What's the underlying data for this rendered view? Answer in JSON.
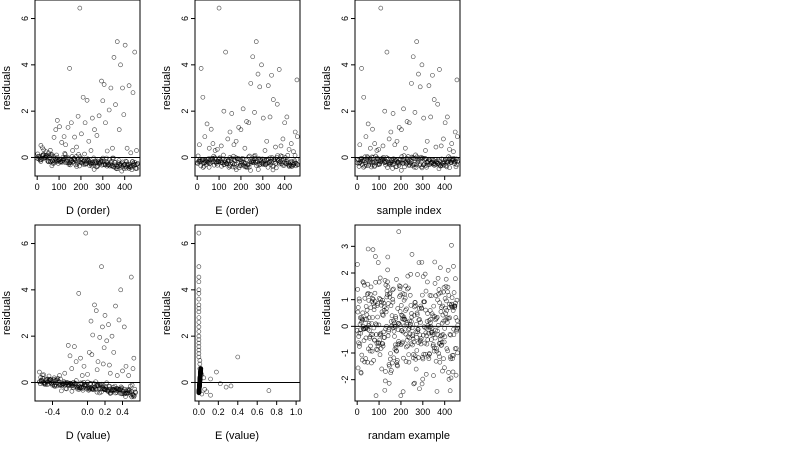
{
  "chart_data": [
    {
      "type": "scatter",
      "xlabel": "D (order)",
      "ylabel": "residuals",
      "xlim": [
        -10,
        470
      ],
      "ylim": [
        -0.8,
        6.8
      ],
      "x_ticks": [
        0,
        100,
        200,
        300,
        400
      ],
      "y_ticks": [
        0,
        2,
        4,
        6
      ],
      "reference_line_y": 0,
      "grid": false,
      "seed": 11,
      "points": [
        [
          17,
          0.52
        ],
        [
          24,
          0.42
        ],
        [
          30,
          0.33
        ],
        [
          40,
          0.25
        ],
        [
          52,
          0.2
        ],
        [
          60,
          0.31
        ],
        [
          68,
          0.12
        ],
        [
          77,
          0.87
        ],
        [
          85,
          1.2
        ],
        [
          92,
          1.6
        ],
        [
          102,
          1.33
        ],
        [
          112,
          0.65
        ],
        [
          123,
          0.9
        ],
        [
          130,
          0.55
        ],
        [
          141,
          1.3
        ],
        [
          148,
          3.85
        ],
        [
          156,
          1.5
        ],
        [
          162,
          0.3
        ],
        [
          171,
          0.88
        ],
        [
          180,
          0.45
        ],
        [
          187,
          1.78
        ],
        [
          195,
          6.45
        ],
        [
          202,
          1.02
        ],
        [
          210,
          2.6
        ],
        [
          219,
          1.5
        ],
        [
          228,
          2.47
        ],
        [
          236,
          0.7
        ],
        [
          246,
          0.3
        ],
        [
          252,
          1.7
        ],
        [
          262,
          1.2
        ],
        [
          273,
          0.95
        ],
        [
          283,
          1.8
        ],
        [
          294,
          3.3
        ],
        [
          300,
          2.45
        ],
        [
          306,
          3.15
        ],
        [
          312,
          1.5
        ],
        [
          320,
          0.28
        ],
        [
          329,
          2.05
        ],
        [
          337,
          3.0
        ],
        [
          344,
          0.4
        ],
        [
          351,
          4.32
        ],
        [
          358,
          2.28
        ],
        [
          366,
          5.0
        ],
        [
          375,
          1.2
        ],
        [
          381,
          4.0
        ],
        [
          390,
          3.0
        ],
        [
          396,
          1.85
        ],
        [
          402,
          4.85
        ],
        [
          411,
          0.4
        ],
        [
          420,
          3.1
        ],
        [
          428,
          0.2
        ],
        [
          438,
          2.8
        ],
        [
          446,
          4.55
        ],
        [
          454,
          0.3
        ]
      ],
      "dense_band": {
        "count": 220,
        "start": [
          0,
          0.0
        ],
        "end": [
          460,
          -0.38
        ],
        "spread": 0.12
      }
    },
    {
      "type": "scatter",
      "xlabel": "E (order)",
      "ylabel": "residuals",
      "xlim": [
        -10,
        470
      ],
      "ylim": [
        -0.8,
        6.8
      ],
      "x_ticks": [
        0,
        100,
        200,
        300,
        400
      ],
      "y_ticks": [
        0,
        2,
        4,
        6
      ],
      "reference_line_y": 0,
      "grid": false,
      "seed": 22,
      "points": [
        [
          10,
          0.55
        ],
        [
          18,
          3.85
        ],
        [
          26,
          2.6
        ],
        [
          35,
          0.9
        ],
        [
          45,
          1.45
        ],
        [
          55,
          0.4
        ],
        [
          64,
          1.22
        ],
        [
          72,
          0.6
        ],
        [
          82,
          0.3
        ],
        [
          92,
          0.35
        ],
        [
          100,
          6.45
        ],
        [
          110,
          0.5
        ],
        [
          122,
          2.0
        ],
        [
          130,
          4.55
        ],
        [
          140,
          0.8
        ],
        [
          150,
          1.1
        ],
        [
          158,
          1.9
        ],
        [
          168,
          0.55
        ],
        [
          178,
          0.7
        ],
        [
          190,
          1.3
        ],
        [
          200,
          1.2
        ],
        [
          210,
          2.1
        ],
        [
          218,
          0.4
        ],
        [
          226,
          1.55
        ],
        [
          236,
          1.5
        ],
        [
          245,
          3.2
        ],
        [
          254,
          4.35
        ],
        [
          262,
          1.95
        ],
        [
          270,
          5.0
        ],
        [
          278,
          3.6
        ],
        [
          286,
          3.05
        ],
        [
          294,
          4.0
        ],
        [
          302,
          1.7
        ],
        [
          310,
          0.3
        ],
        [
          318,
          0.7
        ],
        [
          325,
          3.1
        ],
        [
          333,
          1.75
        ],
        [
          340,
          3.55
        ],
        [
          348,
          2.5
        ],
        [
          358,
          0.45
        ],
        [
          366,
          2.3
        ],
        [
          375,
          3.8
        ],
        [
          383,
          0.5
        ],
        [
          392,
          0.8
        ],
        [
          400,
          1.5
        ],
        [
          410,
          1.75
        ],
        [
          420,
          0.35
        ],
        [
          430,
          0.6
        ],
        [
          440,
          0.25
        ],
        [
          448,
          1.1
        ],
        [
          456,
          3.35
        ],
        [
          458,
          0.9
        ]
      ],
      "dense_band": {
        "count": 220,
        "start": [
          0,
          -0.2
        ],
        "end": [
          460,
          -0.2
        ],
        "spread": 0.12
      }
    },
    {
      "type": "scatter",
      "xlabel": "sample index",
      "ylabel": "residuals",
      "xlim": [
        -10,
        470
      ],
      "ylim": [
        -0.8,
        6.8
      ],
      "x_ticks": [
        0,
        100,
        200,
        300,
        400
      ],
      "y_ticks": [
        0,
        2,
        4,
        6
      ],
      "reference_line_y": 0,
      "grid": false,
      "seed": 33,
      "points": [
        [
          12,
          0.55
        ],
        [
          20,
          3.85
        ],
        [
          30,
          2.6
        ],
        [
          40,
          0.9
        ],
        [
          50,
          1.45
        ],
        [
          60,
          0.4
        ],
        [
          70,
          1.22
        ],
        [
          80,
          0.6
        ],
        [
          90,
          0.3
        ],
        [
          98,
          0.35
        ],
        [
          108,
          6.45
        ],
        [
          118,
          0.5
        ],
        [
          126,
          2.0
        ],
        [
          136,
          4.55
        ],
        [
          146,
          0.8
        ],
        [
          154,
          1.1
        ],
        [
          164,
          1.9
        ],
        [
          172,
          0.55
        ],
        [
          182,
          0.7
        ],
        [
          192,
          1.3
        ],
        [
          202,
          1.2
        ],
        [
          212,
          2.1
        ],
        [
          220,
          0.4
        ],
        [
          228,
          1.55
        ],
        [
          238,
          1.5
        ],
        [
          248,
          3.2
        ],
        [
          256,
          4.35
        ],
        [
          264,
          1.95
        ],
        [
          272,
          5.0
        ],
        [
          280,
          3.6
        ],
        [
          288,
          3.05
        ],
        [
          296,
          4.0
        ],
        [
          304,
          1.7
        ],
        [
          312,
          0.3
        ],
        [
          320,
          0.7
        ],
        [
          328,
          3.1
        ],
        [
          336,
          1.75
        ],
        [
          344,
          3.55
        ],
        [
          352,
          2.5
        ],
        [
          360,
          0.45
        ],
        [
          368,
          2.3
        ],
        [
          376,
          3.8
        ],
        [
          384,
          0.5
        ],
        [
          394,
          0.8
        ],
        [
          402,
          1.5
        ],
        [
          412,
          1.75
        ],
        [
          422,
          0.35
        ],
        [
          432,
          0.6
        ],
        [
          440,
          0.25
        ],
        [
          448,
          1.1
        ],
        [
          456,
          3.35
        ],
        [
          458,
          0.9
        ]
      ],
      "dense_band": {
        "count": 220,
        "start": [
          0,
          -0.2
        ],
        "end": [
          460,
          -0.2
        ],
        "spread": 0.12
      }
    },
    {
      "type": "scatter",
      "xlabel": "D (value)",
      "ylabel": "residuals",
      "xlim": [
        -0.6,
        0.6
      ],
      "ylim": [
        -0.8,
        6.8
      ],
      "x_ticks": [
        -0.4,
        0.0,
        0.2,
        0.4
      ],
      "x_tick_labels": [
        "-0.4",
        "0.0",
        "0.2",
        "0.4"
      ],
      "y_ticks": [
        0,
        2,
        4,
        6
      ],
      "reference_line_y": 0,
      "grid": false,
      "seed": 44,
      "points": [
        [
          -0.55,
          0.45
        ],
        [
          -0.5,
          0.33
        ],
        [
          -0.44,
          0.28
        ],
        [
          -0.38,
          0.2
        ],
        [
          -0.32,
          0.3
        ],
        [
          -0.26,
          0.4
        ],
        [
          -0.22,
          1.6
        ],
        [
          -0.2,
          1.15
        ],
        [
          -0.18,
          0.6
        ],
        [
          -0.15,
          1.55
        ],
        [
          -0.13,
          0.9
        ],
        [
          -0.1,
          3.85
        ],
        [
          -0.08,
          1.05
        ],
        [
          -0.06,
          0.3
        ],
        [
          -0.04,
          0.7
        ],
        [
          -0.02,
          6.45
        ],
        [
          0.0,
          0.35
        ],
        [
          0.02,
          1.3
        ],
        [
          0.04,
          2.65
        ],
        [
          0.06,
          2.05
        ],
        [
          0.08,
          3.35
        ],
        [
          0.1,
          3.1
        ],
        [
          0.12,
          0.9
        ],
        [
          0.14,
          1.95
        ],
        [
          0.16,
          5.0
        ],
        [
          0.17,
          2.4
        ],
        [
          0.18,
          0.8
        ],
        [
          0.2,
          2.9
        ],
        [
          0.22,
          1.8
        ],
        [
          0.24,
          2.5
        ],
        [
          0.26,
          0.4
        ],
        [
          0.28,
          2.0
        ],
        [
          0.3,
          1.3
        ],
        [
          0.32,
          3.3
        ],
        [
          0.34,
          0.3
        ],
        [
          0.36,
          2.7
        ],
        [
          0.38,
          4.0
        ],
        [
          0.4,
          0.5
        ],
        [
          0.42,
          2.4
        ],
        [
          0.44,
          0.7
        ],
        [
          0.47,
          0.3
        ],
        [
          0.5,
          4.55
        ],
        [
          0.52,
          0.6
        ],
        [
          0.53,
          1.05
        ],
        [
          0.05,
          1.2
        ],
        [
          0.11,
          0.55
        ],
        [
          0.19,
          1.5
        ],
        [
          0.25,
          0.75
        ]
      ],
      "dense_band": {
        "count": 220,
        "start": [
          -0.55,
          0.05
        ],
        "end": [
          0.55,
          -0.42
        ],
        "spread": 0.12
      }
    },
    {
      "type": "scatter",
      "xlabel": "E (value)",
      "ylabel": "residuals",
      "xlim": [
        -0.04,
        1.04
      ],
      "ylim": [
        -0.8,
        6.8
      ],
      "x_ticks": [
        0.0,
        0.2,
        0.4,
        0.6,
        0.8,
        1.0
      ],
      "x_tick_labels": [
        "0.0",
        "0.2",
        "0.4",
        "0.6",
        "0.8",
        "1.0"
      ],
      "y_ticks": [
        0,
        2,
        4,
        6
      ],
      "reference_line_y": 0,
      "grid": false,
      "seed": 55,
      "points": [
        [
          0.0,
          6.45
        ],
        [
          0.0,
          5.0
        ],
        [
          0.0,
          4.55
        ],
        [
          0.0,
          4.35
        ],
        [
          0.0,
          4.0
        ],
        [
          0.0,
          3.85
        ],
        [
          0.0,
          3.6
        ],
        [
          0.0,
          3.35
        ],
        [
          0.0,
          3.2
        ],
        [
          0.0,
          3.05
        ],
        [
          0.0,
          2.8
        ],
        [
          0.0,
          2.6
        ],
        [
          0.0,
          2.4
        ],
        [
          0.0,
          2.2
        ],
        [
          0.0,
          2.0
        ],
        [
          0.0,
          1.85
        ],
        [
          0.0,
          1.7
        ],
        [
          0.0,
          1.55
        ],
        [
          0.0,
          1.4
        ],
        [
          0.0,
          1.25
        ],
        [
          0.0,
          1.1
        ],
        [
          0.01,
          0.95
        ],
        [
          0.01,
          0.8
        ],
        [
          0.01,
          0.6
        ],
        [
          0.02,
          0.5
        ],
        [
          0.03,
          0.35
        ],
        [
          0.05,
          0.2
        ],
        [
          0.06,
          -0.3
        ],
        [
          0.08,
          -0.4
        ],
        [
          0.12,
          0.15
        ],
        [
          0.18,
          0.45
        ],
        [
          0.22,
          -0.05
        ],
        [
          0.28,
          -0.2
        ],
        [
          0.33,
          -0.15
        ],
        [
          0.4,
          1.1
        ],
        [
          0.72,
          -0.35
        ],
        [
          0.12,
          -0.55
        ],
        [
          0.03,
          -0.5
        ]
      ],
      "dense_band": {
        "count": 180,
        "start": [
          0.0,
          -0.45
        ],
        "end": [
          0.02,
          0.6
        ],
        "spread": 0.004
      }
    },
    {
      "type": "scatter",
      "xlabel": "randam example",
      "ylabel": "residuals",
      "xlim": [
        -10,
        470
      ],
      "ylim": [
        -2.8,
        3.8
      ],
      "x_ticks": [
        0,
        100,
        200,
        300,
        400
      ],
      "y_ticks": [
        -2,
        -1,
        0,
        1,
        2,
        3
      ],
      "reference_line_y": 0,
      "grid": false,
      "seed": 66,
      "random_cloud": {
        "count": 460,
        "x_range": [
          0,
          460
        ],
        "sd": 1.0
      },
      "points": [
        [
          190,
          3.55
        ],
        [
          50,
          2.9
        ],
        [
          210,
          -2.45
        ],
        [
          140,
          2.6
        ],
        [
          380,
          2.2
        ],
        [
          440,
          2.25
        ]
      ]
    }
  ]
}
